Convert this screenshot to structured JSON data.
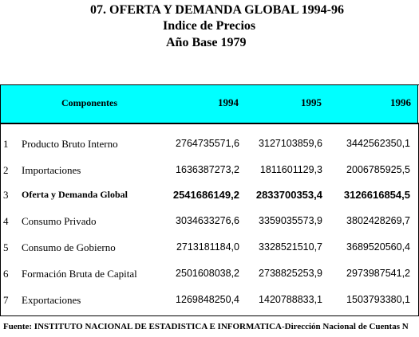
{
  "title": {
    "line1": "07.  OFERTA Y DEMANDA GLOBAL 1994-96",
    "line2": "Indice de Precios",
    "line3": "Año Base 1979"
  },
  "table": {
    "headers": {
      "component": "Componentes",
      "year1": "1994",
      "year2": "1995",
      "year3": "1996"
    },
    "rows": [
      {
        "num": "1",
        "label": "Producto Bruto Interno",
        "v1": "2764735571,6",
        "v2": "3127103859,6",
        "v3": "3442562350,1"
      },
      {
        "num": "2",
        "label": "Importaciones",
        "v1": "1636387273,2",
        "v2": "1811601129,3",
        "v3": "2006785925,5"
      },
      {
        "num": "3",
        "label": "Oferta y Demanda Global",
        "v1": "2541686149,2",
        "v2": "2833700353,4",
        "v3": "3126616854,5"
      },
      {
        "num": "4",
        "label": "Consumo Privado",
        "v1": "3034633276,6",
        "v2": "3359035573,9",
        "v3": "3802428269,7"
      },
      {
        "num": "5",
        "label": "Consumo de Gobierno",
        "v1": "2713181184,0",
        "v2": "3328521510,7",
        "v3": "3689520560,4"
      },
      {
        "num": "6",
        "label": "Formación Bruta de Capital",
        "v1": "2501608038,2",
        "v2": "2738825253,9",
        "v3": "2973987541,2"
      },
      {
        "num": "7",
        "label": "Exportaciones",
        "v1": "1269848250,4",
        "v2": "1420788833,1",
        "v3": "1503793380,1"
      }
    ]
  },
  "footer": "Fuente: INSTITUTO NACIONAL DE ESTADISTICA E INFORMATICA-Dirección Nacional de Cuentas N"
}
